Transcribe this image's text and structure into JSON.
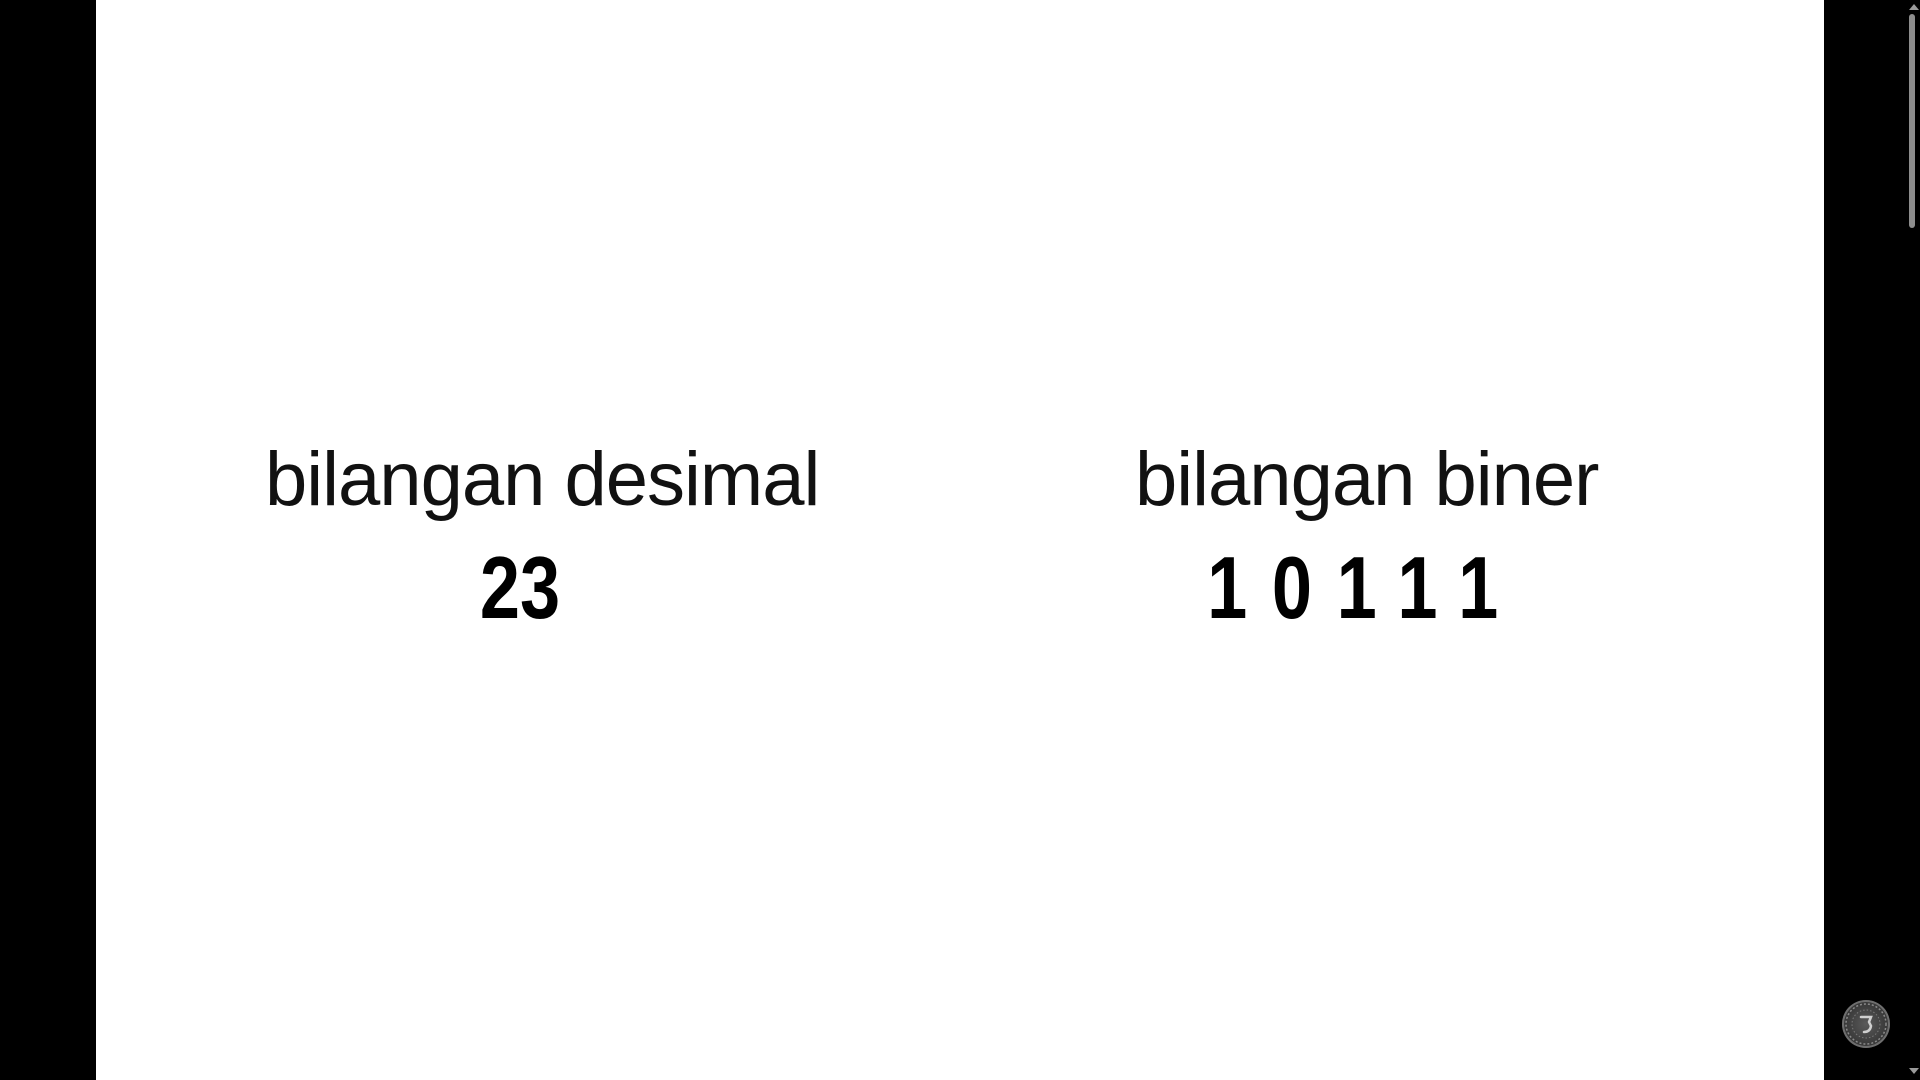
{
  "slide": {
    "left": {
      "label": "bilangan desimal",
      "value": "23"
    },
    "right": {
      "label": "bilangan biner",
      "value": "10111"
    }
  },
  "icons": {
    "watermark": "channel-logo-icon",
    "scroll_up": "scroll-up-arrow-icon",
    "scroll_down": "scroll-down-arrow-icon"
  },
  "colors": {
    "background": "#000000",
    "slide": "#ffffff",
    "text": "#111111"
  }
}
